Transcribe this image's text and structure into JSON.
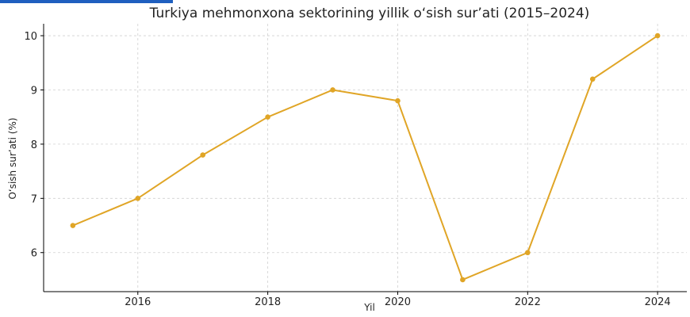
{
  "chart_data": {
    "type": "line",
    "title": "Turkiya mehmonxona sektorining yillik o‘sish sur’ati (2015–2024)",
    "xlabel": "Yil",
    "ylabel": "O‘sish sur’ati (%)",
    "x": [
      2015,
      2016,
      2017,
      2018,
      2019,
      2020,
      2021,
      2022,
      2023,
      2024
    ],
    "series": [
      {
        "values": [
          6.5,
          7.0,
          7.8,
          8.5,
          9.0,
          8.8,
          5.5,
          6.0,
          9.2,
          10.0
        ]
      }
    ],
    "x_ticks": [
      2016,
      2018,
      2020,
      2022,
      2024
    ],
    "y_ticks": [
      6,
      7,
      8,
      9,
      10
    ],
    "xlim": [
      2014.55,
      2024.45
    ],
    "ylim": [
      5.28,
      10.22
    ],
    "grid": true,
    "colors": {
      "line": "#E0A526",
      "grid": "#d0d0d0",
      "axis": "#000000",
      "accent": "#1f5fbf"
    }
  }
}
